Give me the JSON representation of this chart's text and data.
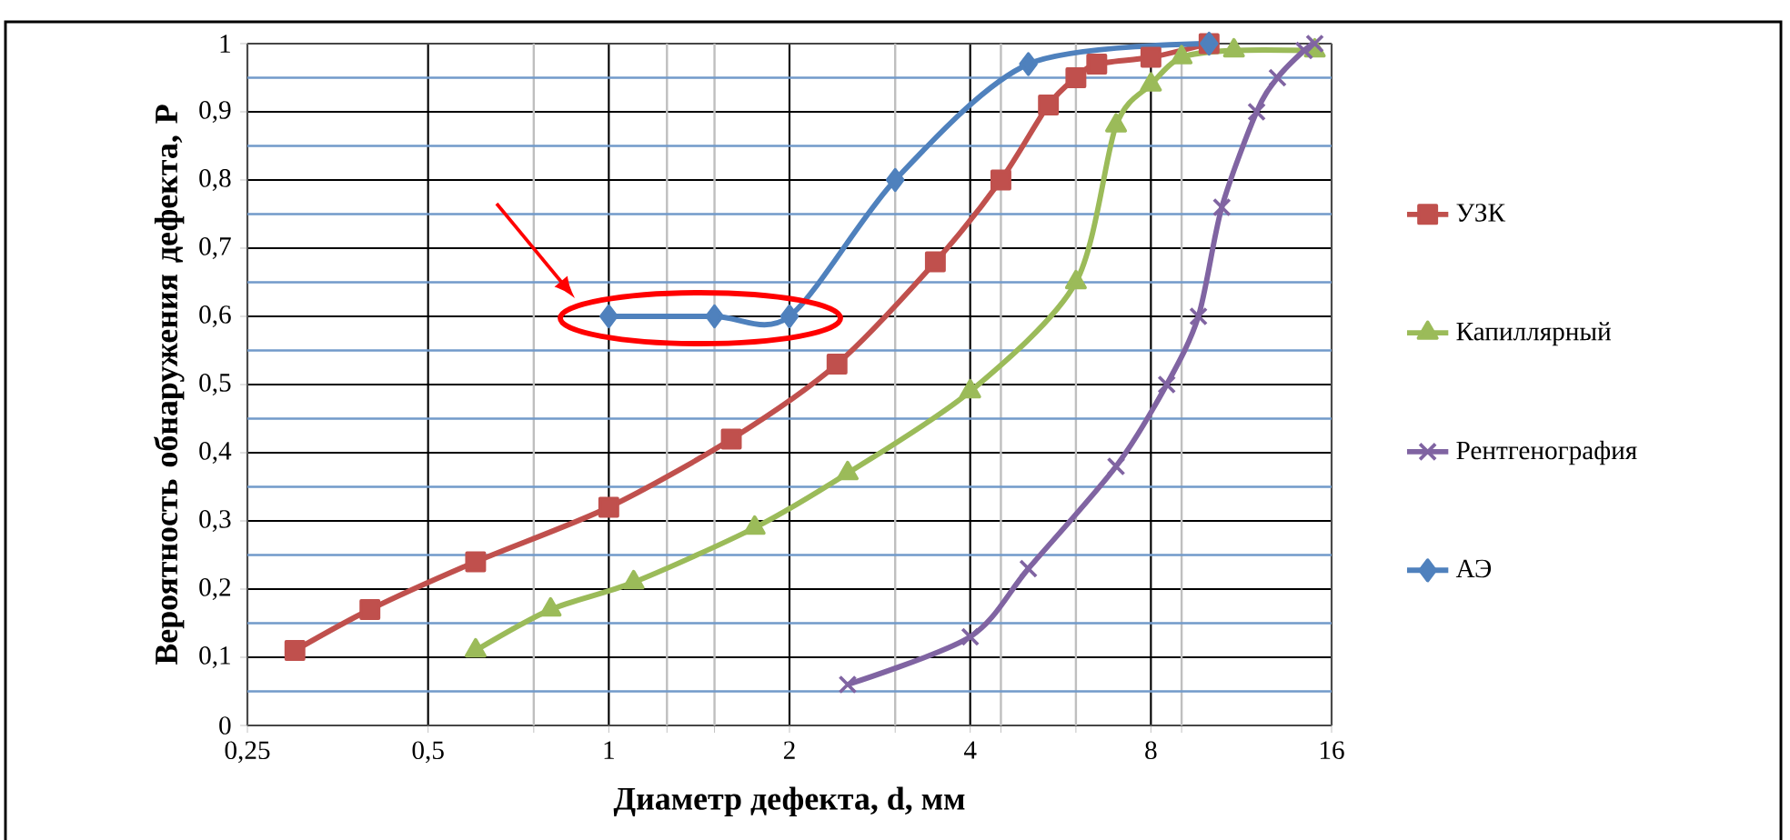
{
  "chart_data": {
    "type": "line",
    "xlabel": "Диаметр дефекта, d, мм",
    "ylabel": "Вероятность обнаружения дефекта, Р",
    "log": "x",
    "grid": true,
    "legend": "right",
    "xlim": [
      0.25,
      16
    ],
    "ylim": [
      0,
      1
    ],
    "xticks": [
      {
        "value": 0.25,
        "label": "0,25"
      },
      {
        "value": 0.5,
        "label": "0,5"
      },
      {
        "value": 0.75,
        "label": null
      },
      1,
      {
        "value": 1.25,
        "label": null
      },
      {
        "value": 1.5,
        "label": null
      },
      2,
      {
        "value": 3,
        "label": null
      },
      4,
      {
        "value": 4.5,
        "label": null
      },
      {
        "value": 6,
        "label": null
      },
      8,
      {
        "value": 9,
        "label": null
      },
      16
    ],
    "yticks": [
      0,
      {
        "value": 0.05,
        "label": null
      },
      {
        "value": 0.1,
        "label": "0,1"
      },
      {
        "value": 0.15,
        "label": null
      },
      {
        "value": 0.2,
        "label": "0,2"
      },
      {
        "value": 0.25,
        "label": null
      },
      {
        "value": 0.3,
        "label": "0,3"
      },
      {
        "value": 0.35,
        "label": null
      },
      {
        "value": 0.4,
        "label": "0,4"
      },
      {
        "value": 0.45,
        "label": null
      },
      {
        "value": 0.5,
        "label": "0,5"
      },
      {
        "value": 0.55,
        "label": null
      },
      {
        "value": 0.6,
        "label": "0,6"
      },
      {
        "value": 0.65,
        "label": null
      },
      {
        "value": 0.7,
        "label": "0,7"
      },
      {
        "value": 0.75,
        "label": null
      },
      {
        "value": 0.8,
        "label": "0,8"
      },
      {
        "value": 0.85,
        "label": null
      },
      {
        "value": 0.9,
        "label": "0,9"
      },
      {
        "value": 0.95,
        "label": null
      },
      1
    ],
    "series": [
      {
        "name": "УЗК",
        "color": "#c0504d",
        "marker": "square",
        "x": [
          0.3,
          0.4,
          0.6,
          1,
          1.6,
          2.4,
          3.5,
          4.5,
          5.4,
          6,
          6.5,
          8,
          10
        ],
        "values": [
          0.11,
          0.17,
          0.24,
          0.32,
          0.42,
          0.53,
          0.68,
          0.8,
          0.91,
          0.95,
          0.97,
          0.98,
          1.0
        ]
      },
      {
        "name": "Капиллярный",
        "color": "#9bbb59",
        "marker": "triangle",
        "x": [
          0.6,
          0.8,
          1.1,
          1.75,
          2.5,
          4,
          6,
          7,
          8,
          9,
          11,
          15
        ],
        "values": [
          0.11,
          0.17,
          0.21,
          0.29,
          0.37,
          0.49,
          0.65,
          0.88,
          0.94,
          0.98,
          0.99,
          0.99
        ]
      },
      {
        "name": "Рентгенография",
        "color": "#8064a2",
        "marker": "cross",
        "x": [
          2.5,
          4,
          5,
          7,
          8.5,
          9.6,
          10.5,
          12,
          13,
          14.4,
          15
        ],
        "values": [
          0.06,
          0.13,
          0.23,
          0.38,
          0.5,
          0.6,
          0.76,
          0.9,
          0.95,
          0.99,
          1.0
        ]
      },
      {
        "name": "АЭ",
        "color": "#4f81bd",
        "marker": "diamond",
        "x": [
          1,
          1.5,
          2,
          3,
          5,
          10
        ],
        "values": [
          0.6,
          0.6,
          0.6,
          0.8,
          0.97,
          1.0
        ]
      }
    ]
  }
}
